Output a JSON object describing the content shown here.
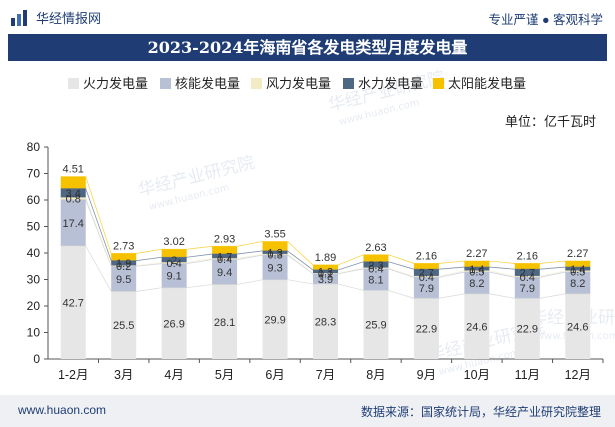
{
  "header": {
    "brand": "华经情报网",
    "tagline": "专业严谨 ● 客观科学"
  },
  "footer": {
    "site": "www.huaon.com",
    "source": "数据来源：国家统计局，华经产业研究院整理"
  },
  "watermark": {
    "text": "华经产业研究院",
    "url": "www.huaon.com"
  },
  "colors": {
    "title_bg": "#1f3d74",
    "footer_bg": "#eef0f3",
    "accent": "#1f3d74"
  },
  "chart_data": {
    "type": "bar",
    "stacked": true,
    "title": "2023-2024年海南省各发电类型月度发电量",
    "unit_label": "单位：亿千瓦时",
    "legend_position": "top",
    "ylim": [
      0,
      80
    ],
    "yticks": [
      0,
      10,
      20,
      30,
      40,
      50,
      60,
      70,
      80
    ],
    "categories": [
      "1-2月",
      "3月",
      "4月",
      "5月",
      "6月",
      "7月",
      "8月",
      "9月",
      "10月",
      "11月",
      "12月"
    ],
    "series": [
      {
        "name": "火力发电量",
        "color": "#e6e6e6",
        "values": [
          42.7,
          25.5,
          26.9,
          28.1,
          29.9,
          28.3,
          25.9,
          22.9,
          24.6,
          22.9,
          24.6
        ]
      },
      {
        "name": "核能发电量",
        "color": "#b8c0d6",
        "values": [
          17.4,
          9.5,
          9.1,
          9.4,
          9.3,
          3.9,
          8.1,
          7.9,
          8.2,
          7.9,
          8.2
        ]
      },
      {
        "name": "风力发电量",
        "color": "#f3ebc4",
        "values": [
          0.8,
          0.2,
          0.4,
          0.4,
          0.3,
          0.1,
          0.4,
          0.4,
          0.5,
          0.4,
          0.5
        ]
      },
      {
        "name": "水力发电量",
        "color": "#4e6784",
        "values": [
          3.4,
          1.9,
          2,
          1.7,
          1.3,
          1.3,
          2.3,
          2.7,
          1.4,
          2.7,
          1.4
        ]
      },
      {
        "name": "太阳能发电量",
        "color": "#f6c200",
        "values": [
          4.51,
          2.73,
          3.02,
          2.93,
          3.55,
          1.89,
          2.63,
          2.16,
          2.27,
          2.16,
          2.27
        ]
      }
    ],
    "grid": false
  }
}
